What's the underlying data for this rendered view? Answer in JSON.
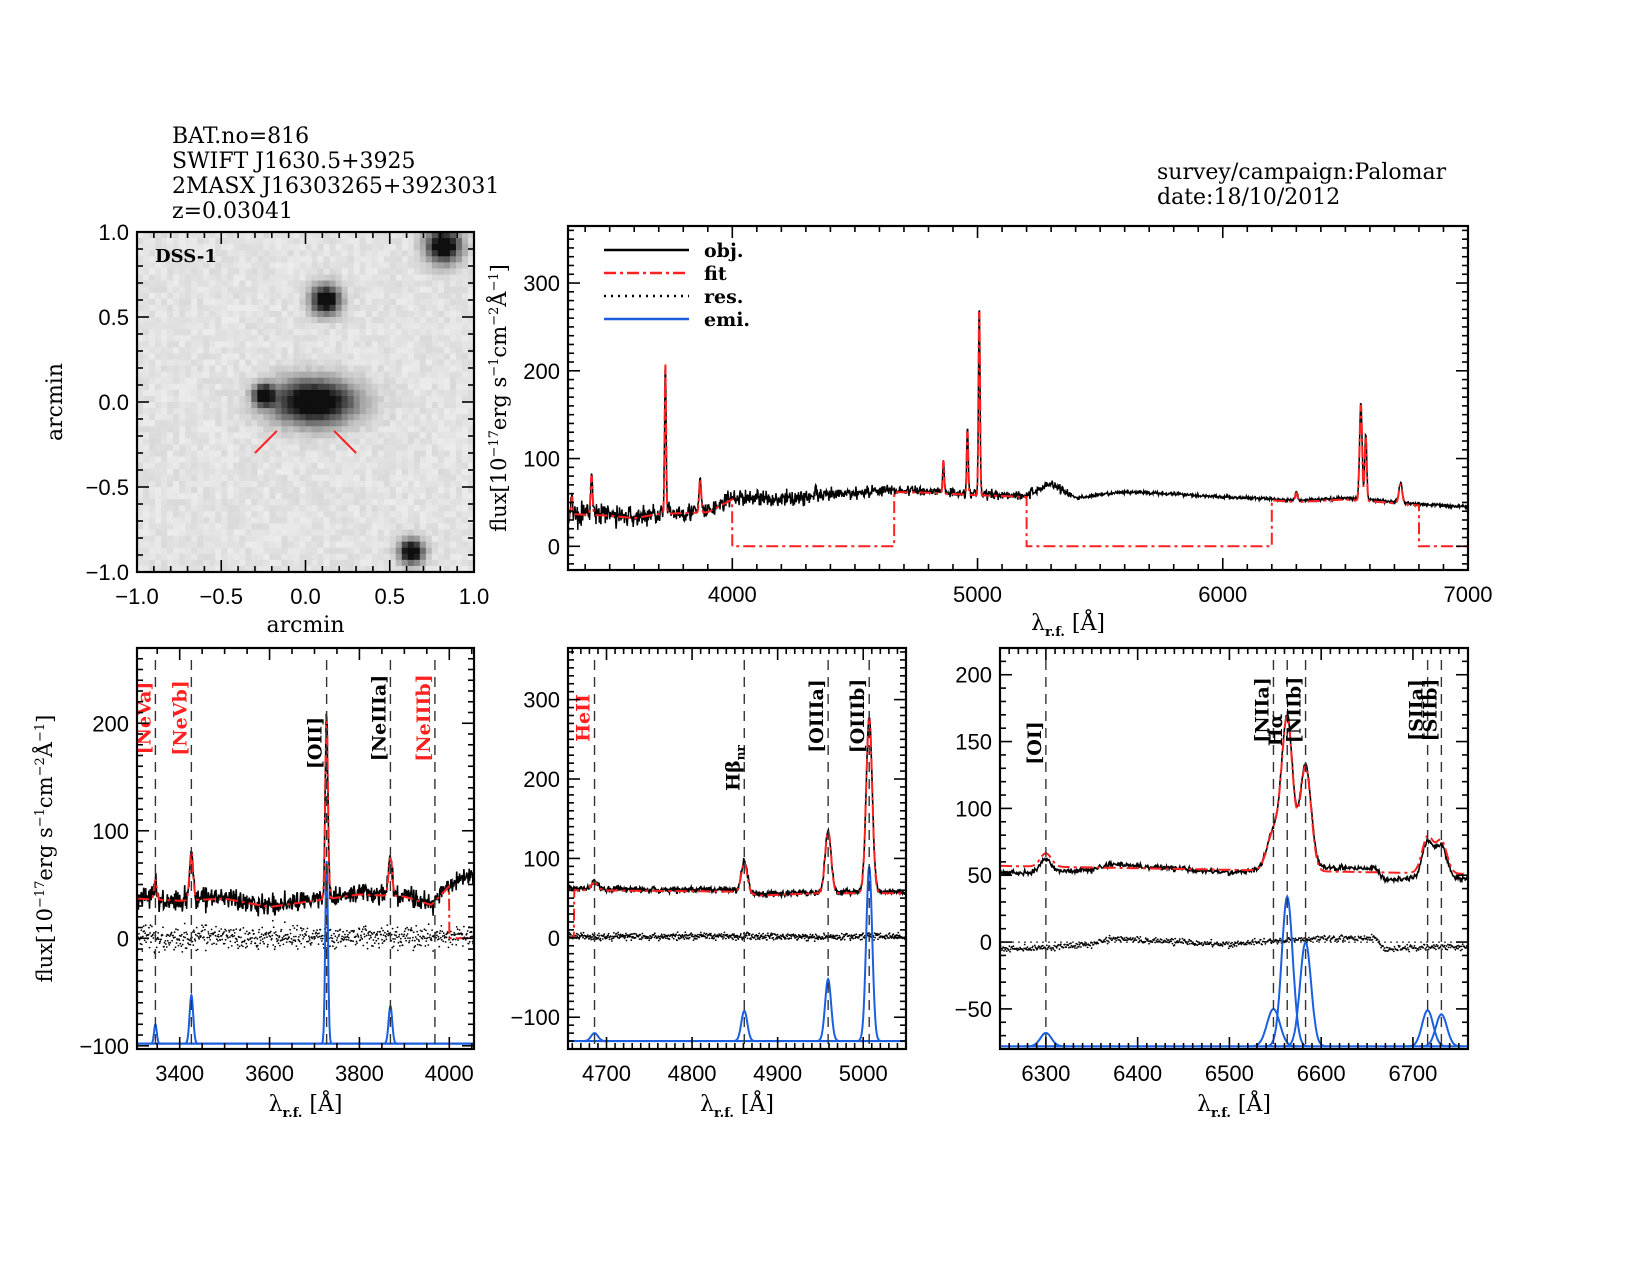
{
  "header": {
    "left_lines": [
      "BAT.no=816",
      "SWIFT J1630.5+3925",
      "2MASX J16303265+3923031",
      "z=0.03041"
    ],
    "right_lines": [
      "survey/campaign:Palomar",
      "date:18/10/2012"
    ]
  },
  "colors": {
    "obj": "#000000",
    "fit": "#ff2020",
    "res": "#000000",
    "emi": "#1a5fe0",
    "label_red": "#ff2020",
    "label_black": "#000000"
  },
  "chart_data": [
    {
      "id": "image",
      "type": "heatmap",
      "title": "",
      "inset_label": "DSS-1",
      "xlabel": "arcmin",
      "ylabel": "arcmin",
      "xlim": [
        -1.0,
        1.0
      ],
      "ylim": [
        -1.0,
        1.0
      ],
      "xticks": [
        "−1.0",
        "−0.5",
        "0.0",
        "0.5",
        "1.0"
      ],
      "yticks": [
        "−1.0",
        "−0.5",
        "0.0",
        "0.5",
        "1.0"
      ],
      "sources": [
        {
          "name": "target galaxy",
          "x": 0.05,
          "y": 0.0,
          "rx": 0.17,
          "ry": 0.09
        },
        {
          "name": "galaxy companion",
          "x": -0.25,
          "y": 0.04,
          "rx": 0.04,
          "ry": 0.04
        },
        {
          "name": "star",
          "x": 0.12,
          "y": 0.6,
          "rx": 0.06,
          "ry": 0.06
        },
        {
          "name": "star",
          "x": 0.82,
          "y": 0.92,
          "rx": 0.07,
          "ry": 0.07
        },
        {
          "name": "star",
          "x": 0.63,
          "y": -0.88,
          "rx": 0.05,
          "ry": 0.05
        }
      ],
      "marker_segments": [
        [
          -0.3,
          -0.3,
          -0.17,
          -0.17
        ],
        [
          0.17,
          -0.17,
          0.3,
          -0.3
        ]
      ]
    },
    {
      "id": "full",
      "type": "line",
      "xlabel": "λr.f. [Å]",
      "ylabel": "flux[10⁻¹⁷erg s⁻¹cm⁻²Å⁻¹]",
      "xlim": [
        3330,
        7000
      ],
      "ylim": [
        -27,
        365
      ],
      "xticks": [
        4000,
        5000,
        6000,
        7000
      ],
      "yticks": [
        0,
        100,
        200,
        300
      ],
      "legend": {
        "position": "top-left",
        "entries": [
          "obj.",
          "fit",
          "res.",
          "emi."
        ]
      },
      "continuum": [
        [
          3330,
          38
        ],
        [
          3500,
          36
        ],
        [
          3600,
          33
        ],
        [
          3700,
          38
        ],
        [
          3900,
          40
        ],
        [
          4000,
          55
        ],
        [
          4200,
          54
        ],
        [
          4400,
          58
        ],
        [
          4600,
          64
        ],
        [
          4800,
          63
        ],
        [
          5000,
          60
        ],
        [
          5200,
          58
        ],
        [
          5300,
          72
        ],
        [
          5400,
          55
        ],
        [
          5600,
          62
        ],
        [
          5800,
          60
        ],
        [
          6000,
          56
        ],
        [
          6200,
          54
        ],
        [
          6300,
          52
        ],
        [
          6500,
          55
        ],
        [
          6600,
          53
        ],
        [
          6800,
          48
        ],
        [
          7000,
          45
        ]
      ],
      "noise": [
        [
          3330,
          10
        ],
        [
          4000,
          7
        ],
        [
          4800,
          4
        ],
        [
          5350,
          4
        ],
        [
          5400,
          1.5
        ],
        [
          7000,
          1.5
        ]
      ],
      "lines": [
        {
          "wl": 3346,
          "amp": 20,
          "sigma": 3
        },
        {
          "wl": 3426,
          "amp": 45,
          "sigma": 4
        },
        {
          "wl": 3727,
          "amp": 170,
          "sigma": 3
        },
        {
          "wl": 3869,
          "amp": 38,
          "sigma": 4
        },
        {
          "wl": 4102,
          "amp": 6,
          "sigma": 4
        },
        {
          "wl": 4340,
          "amp": 8,
          "sigma": 4
        },
        {
          "wl": 4861,
          "amp": 38,
          "sigma": 3
        },
        {
          "wl": 4959,
          "amp": 75,
          "sigma": 3
        },
        {
          "wl": 5007,
          "amp": 220,
          "sigma": 3
        },
        {
          "wl": 6300,
          "amp": 10,
          "sigma": 5
        },
        {
          "wl": 6563,
          "amp": 110,
          "sigma": 5
        },
        {
          "wl": 6583,
          "amp": 75,
          "sigma": 4
        },
        {
          "wl": 6725,
          "amp": 22,
          "sigma": 7
        }
      ],
      "fit_segments": [
        [
          [
            3330,
            0
          ],
          [
            3335,
            38
          ],
          [
            4000,
            42
          ],
          [
            4000,
            0
          ],
          [
            4660,
            0
          ],
          [
            4660,
            60
          ],
          [
            5200,
            58
          ],
          [
            5200,
            0
          ],
          [
            6200,
            0
          ],
          [
            6200,
            57
          ],
          [
            6800,
            52
          ],
          [
            6800,
            0
          ],
          [
            7000,
            0
          ]
        ]
      ]
    },
    {
      "id": "zoom1",
      "type": "line",
      "xlabel": "λr.f. [Å]",
      "ylabel": "flux[10⁻¹⁷erg s⁻¹cm⁻²Å⁻¹]",
      "xlim": [
        3305,
        4055
      ],
      "ylim": [
        -103,
        270
      ],
      "xticks": [
        3400,
        3600,
        3800,
        4000
      ],
      "yticks": [
        -100,
        0,
        100,
        200
      ],
      "baseline_emi": -98,
      "res_offset": 0,
      "continuum": [
        [
          3305,
          38
        ],
        [
          3400,
          36
        ],
        [
          3500,
          38
        ],
        [
          3600,
          30
        ],
        [
          3700,
          36
        ],
        [
          3800,
          42
        ],
        [
          3900,
          40
        ],
        [
          3960,
          32
        ],
        [
          4000,
          50
        ],
        [
          4055,
          60
        ]
      ],
      "noise": [
        [
          3305,
          8
        ],
        [
          4055,
          6
        ]
      ],
      "fit_end": 4000,
      "lines": [
        {
          "label": "[NeVa]",
          "wl": 3346,
          "amp": 18,
          "sigma": 3,
          "color": "red"
        },
        {
          "label": "[NeVb]",
          "wl": 3426,
          "amp": 45,
          "sigma": 4,
          "color": "red"
        },
        {
          "label": "[OII]",
          "wl": 3727,
          "amp": 170,
          "sigma": 3,
          "color": "black"
        },
        {
          "label": "[NeIIIa]",
          "wl": 3869,
          "amp": 35,
          "sigma": 4,
          "color": "black"
        },
        {
          "label": "[NeIIIb]",
          "wl": 3968,
          "amp": 0,
          "sigma": 4,
          "color": "red"
        }
      ]
    },
    {
      "id": "zoom2",
      "type": "line",
      "xlabel": "λr.f. [Å]",
      "ylabel": "",
      "xlim": [
        4655,
        5050
      ],
      "ylim": [
        -140,
        365
      ],
      "xticks": [
        4700,
        4800,
        4900,
        5000
      ],
      "yticks": [
        -100,
        0,
        100,
        200,
        300
      ],
      "baseline_emi": -130,
      "res_offset": 0,
      "continuum": [
        [
          4655,
          62
        ],
        [
          4750,
          61
        ],
        [
          4850,
          60
        ],
        [
          4880,
          55
        ],
        [
          4950,
          58
        ],
        [
          5050,
          58
        ]
      ],
      "noise": [
        [
          4655,
          3
        ],
        [
          5050,
          3
        ]
      ],
      "fit_start": 4662,
      "lines": [
        {
          "label": "HeII",
          "wl": 4686,
          "amp": 10,
          "sigma": 4,
          "color": "red"
        },
        {
          "label": "Hβ_nr",
          "wl": 4861,
          "amp": 38,
          "sigma": 3.5,
          "color": "black"
        },
        {
          "label": "[OIIIa]",
          "wl": 4959,
          "amp": 78,
          "sigma": 3.5,
          "color": "black"
        },
        {
          "label": "[OIIIb]",
          "wl": 5007,
          "amp": 220,
          "sigma": 3.5,
          "color": "black"
        }
      ]
    },
    {
      "id": "zoom3",
      "type": "line",
      "xlabel": "λr.f. [Å]",
      "ylabel": "",
      "xlim": [
        6250,
        6760
      ],
      "ylim": [
        -80,
        220
      ],
      "xticks": [
        6300,
        6400,
        6500,
        6600,
        6700
      ],
      "yticks": [
        -50,
        0,
        50,
        100,
        150,
        200
      ],
      "baseline_emi": -78,
      "res_offset": 0,
      "continuum": [
        [
          6250,
          52
        ],
        [
          6290,
          52
        ],
        [
          6350,
          54
        ],
        [
          6370,
          58
        ],
        [
          6450,
          55
        ],
        [
          6500,
          52
        ],
        [
          6540,
          54
        ],
        [
          6600,
          56
        ],
        [
          6660,
          55
        ],
        [
          6670,
          46
        ],
        [
          6700,
          48
        ],
        [
          6760,
          47
        ]
      ],
      "fit_cont": [
        [
          6250,
          57
        ],
        [
          6760,
          51
        ]
      ],
      "noise": [
        [
          6250,
          1.5
        ],
        [
          6760,
          1.5
        ]
      ],
      "lines": [
        {
          "label": "[OI]",
          "wl": 6300,
          "amp": 10,
          "sigma": 6,
          "color": "black"
        },
        {
          "label": "[NIIa]",
          "wl": 6548,
          "amp": 28,
          "sigma": 7,
          "color": "black"
        },
        {
          "label": "Hα",
          "wl": 6563,
          "amp": 112,
          "sigma": 6,
          "color": "black"
        },
        {
          "label": "[NIIb]",
          "wl": 6583,
          "amp": 78,
          "sigma": 6,
          "color": "black"
        },
        {
          "label": "[SIIa]",
          "wl": 6716,
          "amp": 27,
          "sigma": 6,
          "color": "black"
        },
        {
          "label": "[SIIb]",
          "wl": 6731,
          "amp": 24,
          "sigma": 6,
          "color": "black"
        }
      ]
    }
  ]
}
